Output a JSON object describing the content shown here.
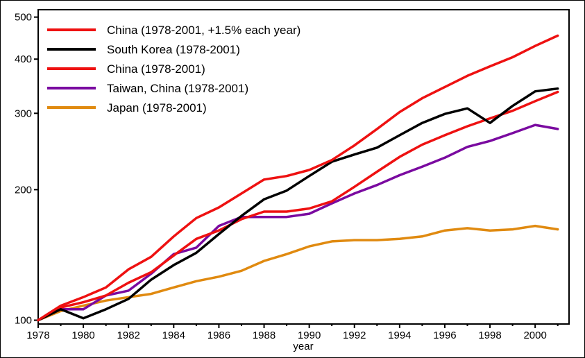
{
  "chart_data": {
    "type": "line",
    "xlabel": "year",
    "ylabel": "",
    "x_scale": "linear",
    "y_scale": "log",
    "xlim": [
      1978,
      2001.5
    ],
    "ylim": [
      98,
      520
    ],
    "x_ticks": [
      "1978",
      "1980",
      "1982",
      "1984",
      "1986",
      "1988",
      "1990",
      "1992",
      "1994",
      "1996",
      "1998",
      "2000"
    ],
    "y_ticks": [
      "100",
      "200",
      "300",
      "400",
      "500"
    ],
    "grid": false,
    "legend_position": "top-left",
    "x": [
      1978,
      1979,
      1980,
      1981,
      1982,
      1983,
      1984,
      1985,
      1986,
      1987,
      1988,
      1989,
      1990,
      1991,
      1992,
      1993,
      1994,
      1995,
      1996,
      1997,
      1998,
      1999,
      2000,
      2001
    ],
    "series": [
      {
        "name": "China (1978-2001, +1.5% each year)",
        "color": "#ee1111",
        "values": [
          100,
          108,
          113,
          119,
          131,
          140,
          156,
          172,
          182,
          196,
          211,
          215,
          222,
          234,
          253,
          276,
          302,
          325,
          345,
          366,
          385,
          404,
          429,
          453
        ]
      },
      {
        "name": "South Korea (1978-2001)",
        "color": "#000000",
        "values": [
          100,
          106,
          101,
          106,
          112,
          124,
          134,
          143,
          158,
          174,
          190,
          199,
          215,
          232,
          241,
          250,
          267,
          285,
          299,
          308,
          285,
          312,
          337,
          342
        ]
      },
      {
        "name": "China (1978-2001)",
        "color": "#ee1111",
        "values": [
          100,
          107,
          110,
          114,
          122,
          129,
          141,
          154,
          161,
          171,
          178,
          178,
          181,
          188,
          203,
          220,
          238,
          254,
          267,
          280,
          292,
          304,
          320,
          336
        ]
      },
      {
        "name": "Taiwan, China (1978-2001)",
        "color": "#7a0aa0",
        "values": [
          100,
          106,
          106,
          114,
          117,
          128,
          142,
          147,
          165,
          173,
          173,
          173,
          176,
          186,
          196,
          205,
          216,
          226,
          237,
          251,
          259,
          270,
          282,
          276
        ]
      },
      {
        "name": "Japan (1978-2001)",
        "color": "#e08a10",
        "values": [
          100,
          105,
          108,
          111,
          113,
          115,
          119,
          123,
          126,
          130,
          137,
          142,
          148,
          152,
          153,
          153,
          154,
          156,
          161,
          163,
          161,
          162,
          165,
          162
        ]
      }
    ]
  }
}
